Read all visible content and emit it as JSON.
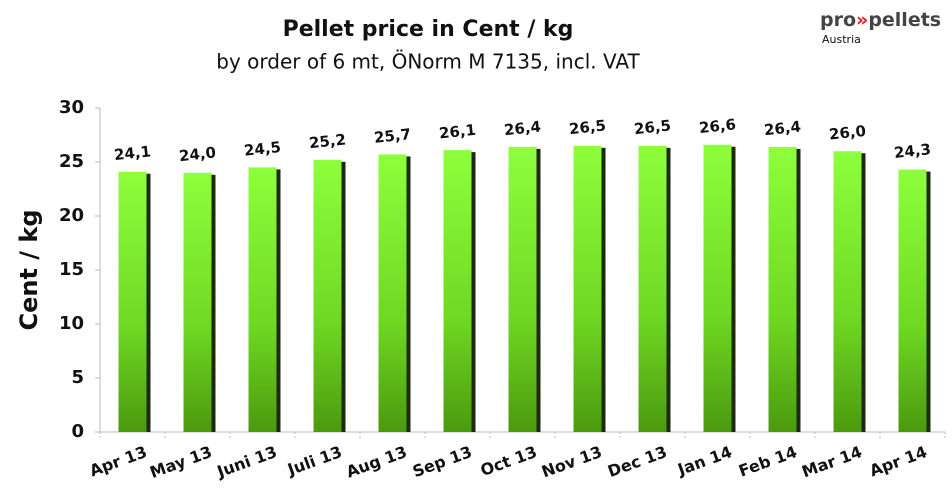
{
  "logo": {
    "parts": [
      "pro",
      "»",
      "pellets"
    ],
    "region": "Austria"
  },
  "chart_data": {
    "type": "bar",
    "title": "Pellet price in  Cent / kg",
    "subtitle": "by order of 6 mt, ÖNorm M 7135, incl. VAT",
    "y_label": "Cent / kg",
    "categories": [
      "Apr 13",
      "May 13",
      "Juni 13",
      "Juli 13",
      "Aug 13",
      "Sep 13",
      "Oct 13",
      "Nov 13",
      "Dec 13",
      "Jan 14",
      "Feb 14",
      "Mar 14",
      "Apr 14"
    ],
    "values": [
      24.1,
      24.0,
      24.5,
      25.2,
      25.7,
      26.1,
      26.4,
      26.5,
      26.5,
      26.6,
      26.4,
      26.0,
      24.3
    ],
    "value_labels": [
      "24,1",
      "24,0",
      "24,5",
      "25,2",
      "25,7",
      "26,1",
      "26,4",
      "26,5",
      "26,5",
      "26,6",
      "26,4",
      "26,0",
      "24,3"
    ],
    "color": "#7ee62a",
    "ylim": [
      0,
      30
    ],
    "yticks": [
      0,
      5,
      10,
      15,
      20,
      25,
      30
    ],
    "grid": false
  }
}
